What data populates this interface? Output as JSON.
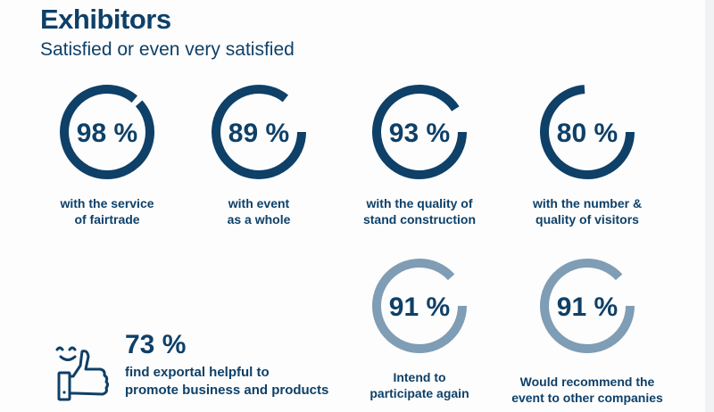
{
  "header": {
    "title": "Exhibitors",
    "subtitle": "Satisfied or even very satisfied"
  },
  "colors": {
    "primary": "#0e4068",
    "secondary": "#7f9db4",
    "background": "#fdfdfd"
  },
  "chart_data": {
    "type": "donut-stats",
    "title": "Exhibitors",
    "subtitle": "Satisfied or even very satisfied",
    "items": [
      {
        "value": 98,
        "label_display": "98 %",
        "caption": [
          "with the service",
          "of fairtrade"
        ],
        "style": "primary"
      },
      {
        "value": 89,
        "label_display": "89 %",
        "caption": [
          "with event",
          "as a whole"
        ],
        "style": "primary"
      },
      {
        "value": 93,
        "label_display": "93 %",
        "caption": [
          "with the quality of",
          "stand construction"
        ],
        "style": "primary"
      },
      {
        "value": 80,
        "label_display": "80 %",
        "caption": [
          "with the number &",
          "quality of visitors"
        ],
        "style": "primary"
      },
      {
        "value": 91,
        "label_display": "91 %",
        "caption": [
          "Intend to",
          "participate again"
        ],
        "style": "secondary"
      },
      {
        "value": 91,
        "label_display": "91 %",
        "caption": [
          "Would recommend the",
          "event to other companies"
        ],
        "style": "secondary"
      }
    ],
    "highlight": {
      "value": 73,
      "label_display": "73 %",
      "caption": [
        "find exportal helpful to",
        "promote business and products"
      ],
      "icon": "thumbs-up-smiley-icon"
    }
  }
}
